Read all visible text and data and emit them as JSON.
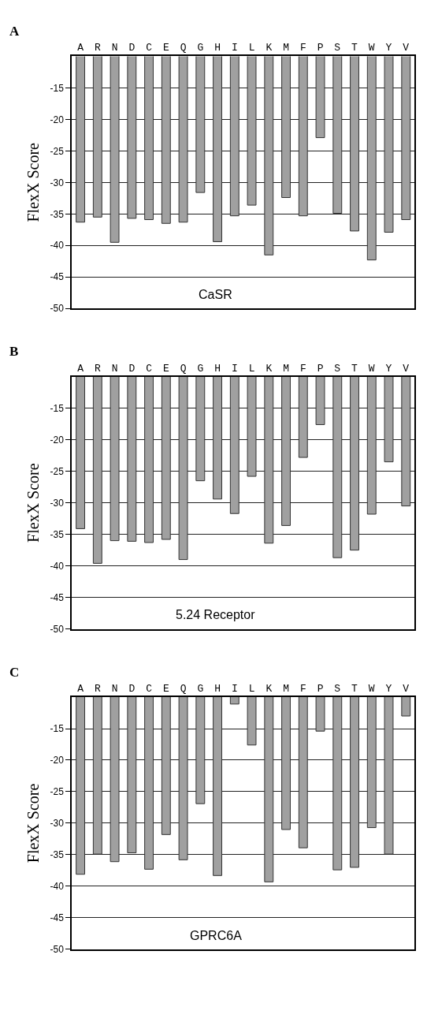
{
  "chart_data": [
    {
      "type": "bar",
      "title": "A",
      "ylabel": "FlexX Score",
      "annotations": [
        "CaSR"
      ],
      "categories": [
        "A",
        "R",
        "N",
        "D",
        "C",
        "E",
        "Q",
        "G",
        "H",
        "I",
        "L",
        "K",
        "M",
        "F",
        "P",
        "S",
        "T",
        "W",
        "Y",
        "V"
      ],
      "values": [
        -36.3,
        -35.5,
        -39.5,
        -35.7,
        -35.9,
        -36.5,
        -36.3,
        -31.6,
        -39.4,
        -35.3,
        -33.6,
        -41.5,
        -32.4,
        -35.3,
        -22.9,
        -34.9,
        -37.7,
        -42.3,
        -37.9,
        -35.9
      ],
      "color": "#a0a0a0",
      "ylim": [
        -50,
        -10
      ],
      "yticks": [
        -15,
        -20,
        -25,
        -30,
        -35,
        -40,
        -45,
        -50
      ],
      "grid": "y"
    },
    {
      "type": "bar",
      "title": "B",
      "ylabel": "FlexX Score",
      "annotations": [
        "5.24 Receptor"
      ],
      "categories": [
        "A",
        "R",
        "N",
        "D",
        "C",
        "E",
        "Q",
        "G",
        "H",
        "I",
        "L",
        "K",
        "M",
        "F",
        "P",
        "S",
        "T",
        "W",
        "Y",
        "V"
      ],
      "values": [
        -34.1,
        -39.6,
        -36.0,
        -36.1,
        -36.3,
        -35.8,
        -39.0,
        -26.5,
        -29.4,
        -31.7,
        -25.8,
        -36.4,
        -33.6,
        -22.8,
        -17.6,
        -38.7,
        -37.5,
        -31.8,
        -23.5,
        -30.5
      ],
      "color": "#a0a0a0",
      "ylim": [
        -50,
        -10
      ],
      "yticks": [
        -15,
        -20,
        -25,
        -30,
        -35,
        -40,
        -45,
        -50
      ],
      "grid": "y"
    },
    {
      "type": "bar",
      "title": "C",
      "ylabel": "FlexX Score",
      "annotations": [
        "GPRC6A"
      ],
      "categories": [
        "A",
        "R",
        "N",
        "D",
        "C",
        "E",
        "Q",
        "G",
        "H",
        "I",
        "L",
        "K",
        "M",
        "F",
        "P",
        "S",
        "T",
        "W",
        "Y",
        "V"
      ],
      "values": [
        -38.1,
        -34.9,
        -36.1,
        -34.7,
        -37.3,
        -31.8,
        -35.8,
        -26.9,
        -38.3,
        -11.1,
        -17.6,
        -39.3,
        -31.0,
        -33.9,
        -15.4,
        -37.4,
        -37.0,
        -30.7,
        -34.9,
        -13.0
      ],
      "color": "#a0a0a0",
      "ylim": [
        -50,
        -10
      ],
      "yticks": [
        -15,
        -20,
        -25,
        -30,
        -35,
        -40,
        -45,
        -50
      ],
      "grid": "y"
    }
  ]
}
